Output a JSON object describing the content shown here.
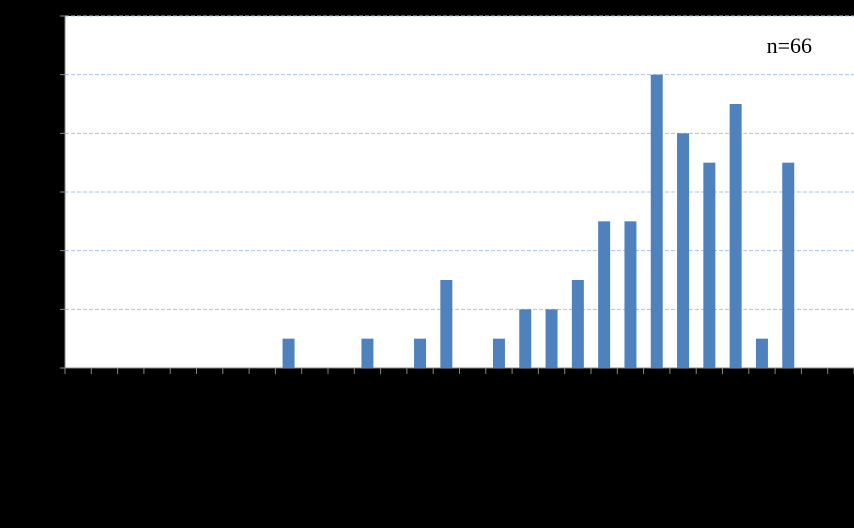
{
  "chart_data": {
    "type": "bar",
    "annotation": "n=66",
    "categories": [
      null,
      null,
      null,
      null,
      null,
      null,
      null,
      null,
      null,
      null,
      null,
      null,
      null,
      null,
      null,
      null,
      null,
      null,
      null,
      null,
      null,
      null,
      null,
      null,
      null,
      null,
      null,
      null,
      null,
      null
    ],
    "values": [
      0,
      0,
      0,
      0,
      0,
      0,
      0,
      0,
      1,
      0,
      0,
      1,
      0,
      1,
      3,
      0,
      1,
      2,
      2,
      3,
      5,
      5,
      10,
      8,
      7,
      9,
      1,
      7,
      0,
      0
    ],
    "color": "#4f81bd",
    "ylim": [
      0,
      12
    ],
    "yticks": [
      0,
      2,
      4,
      6,
      8,
      10,
      12
    ],
    "grid": true
  }
}
